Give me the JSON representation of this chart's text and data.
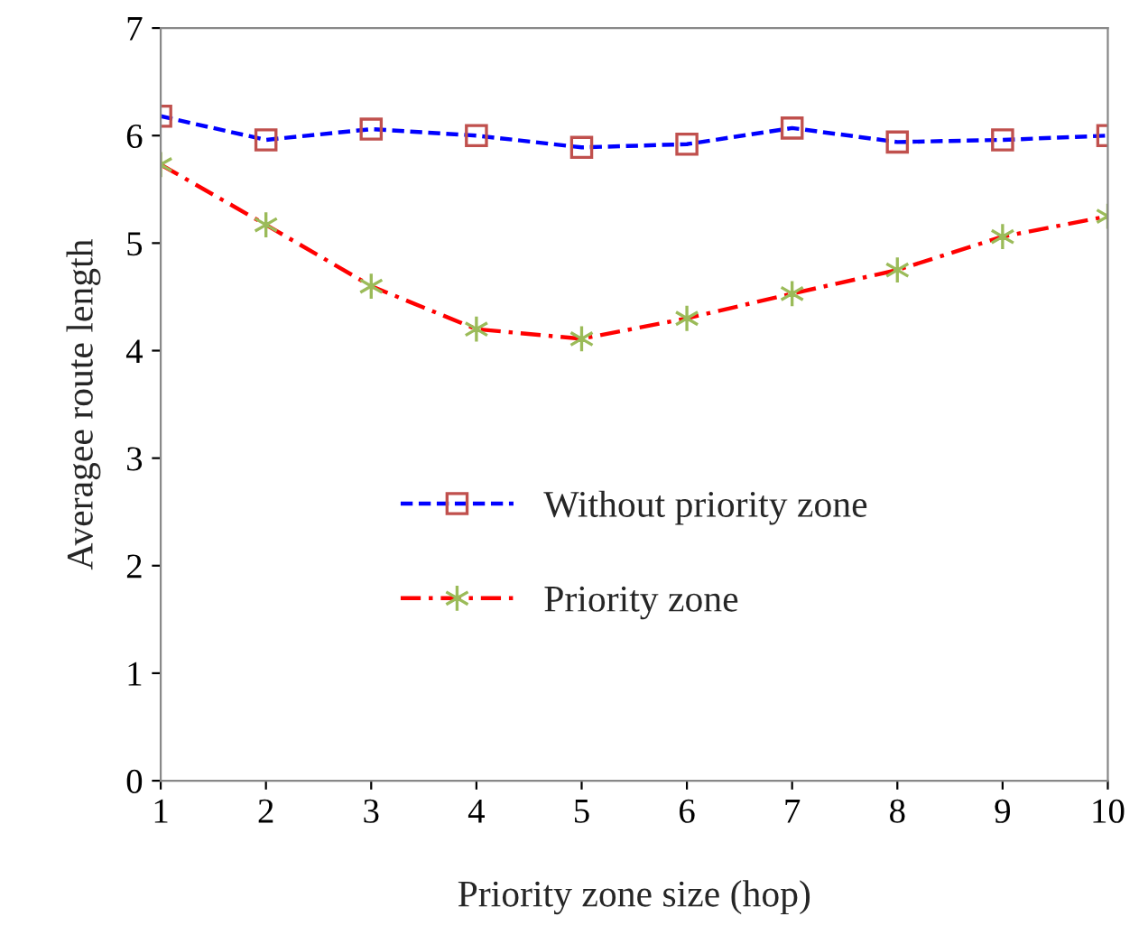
{
  "chart_data": {
    "type": "line",
    "xlabel": "Priority zone size (hop)",
    "ylabel": "Averagee route length",
    "x": [
      1,
      2,
      3,
      4,
      5,
      6,
      7,
      8,
      9,
      10
    ],
    "xlim": [
      1,
      10
    ],
    "xticks": [
      1,
      2,
      3,
      4,
      5,
      6,
      7,
      8,
      9,
      10
    ],
    "ylim": [
      0,
      7
    ],
    "yticks": [
      0,
      1,
      2,
      3,
      4,
      5,
      6,
      7
    ],
    "grid": false,
    "legend": "center",
    "series": [
      {
        "name": "Without priority zone",
        "color": "#0000ff",
        "marker": "square",
        "line_style": "dashed",
        "values": [
          6.18,
          5.96,
          6.06,
          6.0,
          5.89,
          5.92,
          6.07,
          5.94,
          5.96,
          6.0
        ]
      },
      {
        "name": "Priority zone",
        "color": "#ff0000",
        "marker": "cross",
        "line_style": "dashdot",
        "values": [
          5.73,
          5.17,
          4.6,
          4.2,
          4.11,
          4.3,
          4.53,
          4.75,
          5.06,
          5.25
        ]
      }
    ]
  }
}
